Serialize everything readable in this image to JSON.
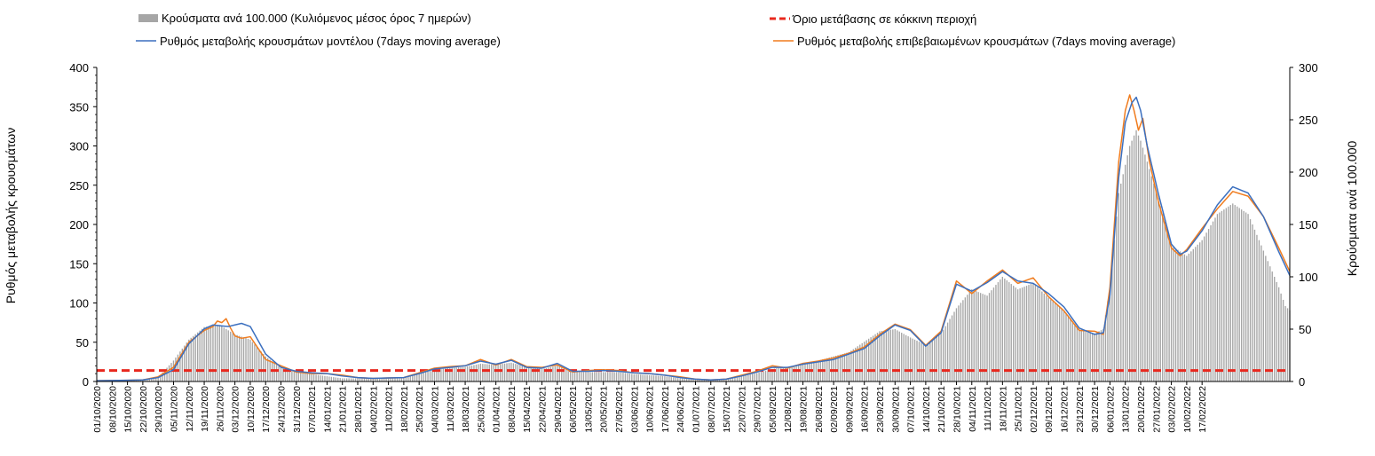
{
  "chart_data": {
    "type": "bar+line",
    "title": "",
    "ylabel_left": "Ρυθμός μεταβολής κρουσμάτων",
    "ylabel_right": "Κρούσματα ανά 100.000",
    "ylim_left": [
      0,
      400
    ],
    "ylim_right": [
      0,
      300
    ],
    "yticks_left": [
      "0",
      "50",
      "100",
      "150",
      "200",
      "250",
      "300",
      "350",
      "400"
    ],
    "yticks_right": [
      "0",
      "50",
      "100",
      "150",
      "200",
      "250",
      "300"
    ],
    "x_start": "01/10/2020",
    "x_end": "22/02/2022",
    "x_ticks": [
      "01/10/2020",
      "08/10/2020",
      "15/10/2020",
      "22/10/2020",
      "29/10/2020",
      "05/11/2020",
      "12/11/2020",
      "19/11/2020",
      "26/11/2020",
      "03/12/2020",
      "10/12/2020",
      "17/12/2020",
      "24/12/2020",
      "31/12/2020",
      "07/01/2021",
      "14/01/2021",
      "21/01/2021",
      "28/01/2021",
      "04/02/2021",
      "11/02/2021",
      "18/02/2021",
      "25/02/2021",
      "04/03/2021",
      "11/03/2021",
      "18/03/2021",
      "25/03/2021",
      "01/04/2021",
      "08/04/2021",
      "15/04/2021",
      "22/04/2021",
      "29/04/2021",
      "06/05/2021",
      "13/05/2021",
      "20/05/2021",
      "27/05/2021",
      "03/06/2021",
      "10/06/2021",
      "17/06/2021",
      "24/06/2021",
      "01/07/2021",
      "08/07/2021",
      "15/07/2021",
      "22/07/2021",
      "29/07/2021",
      "05/08/2021",
      "12/08/2021",
      "19/08/2021",
      "26/08/2021",
      "02/09/2021",
      "09/09/2021",
      "16/09/2021",
      "23/09/2021",
      "30/09/2021",
      "07/10/2021",
      "14/10/2021",
      "21/10/2021",
      "28/10/2021",
      "04/11/2021",
      "11/11/2021",
      "18/11/2021",
      "25/11/2021",
      "02/12/2021",
      "09/12/2021",
      "16/12/2021",
      "23/12/2021",
      "30/12/2021",
      "06/01/2022",
      "13/01/2022",
      "20/01/2022",
      "27/01/2022",
      "03/02/2022",
      "10/02/2022",
      "17/02/2022"
    ],
    "legend": [
      {
        "label": "Κρούσματα ανά 100.000 (Κυλιόμενος μέσος όρος 7 ημερών)",
        "kind": "bar",
        "color": "#a6a6a6"
      },
      {
        "label": "Όριο μετάβασης σε κόκκινη περιοχή",
        "kind": "dash",
        "color": "#e8281e"
      },
      {
        "label": "Ρυθμός μεταβολής κρουσμάτων μοντέλου (7days moving average)",
        "kind": "line",
        "color": "#3b6fbf"
      },
      {
        "label": "Ρυθμός μεταβολής επιβεβαιωμένων κρουσμάτων (7days moving average)",
        "kind": "line",
        "color": "#f07c1e"
      }
    ],
    "series": [
      {
        "name": "Κρούσματα ανά 100.000 (Κυλιόμενος μέσος όρος 7 ημερών)",
        "axis": "right",
        "type": "bar",
        "color": "#a6a6a6",
        "points": [
          [
            0,
            0.5
          ],
          [
            14,
            0.8
          ],
          [
            21,
            1.2
          ],
          [
            28,
            4
          ],
          [
            35,
            20
          ],
          [
            42,
            40
          ],
          [
            49,
            52
          ],
          [
            56,
            54
          ],
          [
            63,
            45
          ],
          [
            70,
            40
          ],
          [
            77,
            24
          ],
          [
            84,
            13
          ],
          [
            91,
            9
          ],
          [
            98,
            7
          ],
          [
            105,
            5
          ],
          [
            112,
            3
          ],
          [
            119,
            3
          ],
          [
            126,
            3
          ],
          [
            133,
            3.5
          ],
          [
            140,
            4
          ],
          [
            147,
            9
          ],
          [
            154,
            11
          ],
          [
            161,
            13
          ],
          [
            168,
            14
          ],
          [
            175,
            17
          ],
          [
            182,
            16
          ],
          [
            189,
            18
          ],
          [
            196,
            14
          ],
          [
            203,
            12
          ],
          [
            210,
            15
          ],
          [
            217,
            9
          ],
          [
            224,
            9
          ],
          [
            231,
            9
          ],
          [
            238,
            9
          ],
          [
            245,
            7
          ],
          [
            252,
            6
          ],
          [
            259,
            5
          ],
          [
            266,
            3
          ],
          [
            273,
            2
          ],
          [
            280,
            1.5
          ],
          [
            287,
            2
          ],
          [
            294,
            5
          ],
          [
            301,
            8
          ],
          [
            308,
            12
          ],
          [
            315,
            14
          ],
          [
            322,
            17
          ],
          [
            329,
            20
          ],
          [
            336,
            24
          ],
          [
            343,
            28
          ],
          [
            350,
            38
          ],
          [
            357,
            48
          ],
          [
            364,
            50
          ],
          [
            371,
            42
          ],
          [
            378,
            35
          ],
          [
            385,
            46
          ],
          [
            392,
            70
          ],
          [
            399,
            88
          ],
          [
            406,
            82
          ],
          [
            413,
            100
          ],
          [
            420,
            88
          ],
          [
            427,
            94
          ],
          [
            434,
            80
          ],
          [
            441,
            68
          ],
          [
            448,
            50
          ],
          [
            455,
            46
          ],
          [
            459,
            50
          ],
          [
            462,
            90
          ],
          [
            466,
            180
          ],
          [
            471,
            225
          ],
          [
            474,
            240
          ],
          [
            476,
            230
          ],
          [
            479,
            210
          ],
          [
            484,
            175
          ],
          [
            490,
            130
          ],
          [
            497,
            120
          ],
          [
            504,
            135
          ],
          [
            511,
            160
          ],
          [
            518,
            170
          ],
          [
            525,
            160
          ],
          [
            532,
            125
          ],
          [
            539,
            90
          ],
          [
            542,
            72
          ],
          [
            544,
            68
          ]
        ]
      },
      {
        "name": "Όριο μετάβασης σε κόκκινη περιοχή",
        "axis": "left",
        "type": "dash",
        "color": "#e8281e",
        "points": [
          [
            0,
            14
          ],
          [
            544,
            14
          ]
        ]
      },
      {
        "name": "Ρυθμός μεταβολής κρουσμάτων μοντέλου (7days moving average)",
        "axis": "left",
        "type": "line",
        "color": "#3b6fbf",
        "points": [
          [
            0,
            1
          ],
          [
            14,
            1.5
          ],
          [
            21,
            2
          ],
          [
            28,
            5
          ],
          [
            35,
            15
          ],
          [
            42,
            48
          ],
          [
            49,
            67
          ],
          [
            53,
            72
          ],
          [
            56,
            71
          ],
          [
            60,
            70
          ],
          [
            63,
            72
          ],
          [
            66,
            74
          ],
          [
            70,
            70
          ],
          [
            77,
            35
          ],
          [
            84,
            18
          ],
          [
            91,
            13
          ],
          [
            98,
            11
          ],
          [
            105,
            10
          ],
          [
            112,
            7
          ],
          [
            119,
            5
          ],
          [
            126,
            4
          ],
          [
            133,
            4.5
          ],
          [
            140,
            5
          ],
          [
            147,
            10
          ],
          [
            154,
            16
          ],
          [
            161,
            18
          ],
          [
            168,
            20
          ],
          [
            175,
            26
          ],
          [
            182,
            22
          ],
          [
            189,
            27
          ],
          [
            196,
            18
          ],
          [
            203,
            17
          ],
          [
            210,
            23
          ],
          [
            217,
            13
          ],
          [
            224,
            13
          ],
          [
            231,
            14
          ],
          [
            238,
            13
          ],
          [
            245,
            11
          ],
          [
            252,
            10
          ],
          [
            259,
            8
          ],
          [
            266,
            5
          ],
          [
            273,
            3
          ],
          [
            280,
            2
          ],
          [
            287,
            3
          ],
          [
            294,
            7
          ],
          [
            301,
            12
          ],
          [
            308,
            18
          ],
          [
            315,
            18
          ],
          [
            322,
            22
          ],
          [
            329,
            25
          ],
          [
            336,
            28
          ],
          [
            343,
            35
          ],
          [
            350,
            42
          ],
          [
            357,
            58
          ],
          [
            364,
            72
          ],
          [
            371,
            65
          ],
          [
            378,
            45
          ],
          [
            385,
            62
          ],
          [
            392,
            124
          ],
          [
            399,
            115
          ],
          [
            406,
            126
          ],
          [
            413,
            140
          ],
          [
            420,
            128
          ],
          [
            427,
            125
          ],
          [
            434,
            112
          ],
          [
            441,
            95
          ],
          [
            448,
            68
          ],
          [
            455,
            60
          ],
          [
            459,
            62
          ],
          [
            462,
            110
          ],
          [
            466,
            260
          ],
          [
            469,
            330
          ],
          [
            472,
            355
          ],
          [
            474,
            362
          ],
          [
            476,
            345
          ],
          [
            479,
            300
          ],
          [
            484,
            240
          ],
          [
            490,
            175
          ],
          [
            494,
            162
          ],
          [
            497,
            166
          ],
          [
            504,
            192
          ],
          [
            511,
            225
          ],
          [
            518,
            248
          ],
          [
            525,
            240
          ],
          [
            532,
            210
          ],
          [
            539,
            165
          ],
          [
            544,
            135
          ]
        ]
      },
      {
        "name": "Ρυθμός μεταβολής επιβεβαιωμένων κρουσμάτων (7days moving average)",
        "axis": "left",
        "type": "line",
        "color": "#f07c1e",
        "points": [
          [
            0,
            1
          ],
          [
            14,
            1.5
          ],
          [
            21,
            2
          ],
          [
            28,
            6
          ],
          [
            35,
            18
          ],
          [
            42,
            50
          ],
          [
            49,
            65
          ],
          [
            53,
            70
          ],
          [
            55,
            77
          ],
          [
            57,
            75
          ],
          [
            59,
            80
          ],
          [
            61,
            68
          ],
          [
            63,
            58
          ],
          [
            66,
            55
          ],
          [
            70,
            57
          ],
          [
            77,
            28
          ],
          [
            84,
            20
          ],
          [
            91,
            12
          ],
          [
            98,
            10
          ],
          [
            105,
            10
          ],
          [
            112,
            8
          ],
          [
            119,
            5
          ],
          [
            126,
            4
          ],
          [
            133,
            4.5
          ],
          [
            140,
            5
          ],
          [
            147,
            11
          ],
          [
            154,
            17
          ],
          [
            161,
            19
          ],
          [
            168,
            20
          ],
          [
            175,
            28
          ],
          [
            182,
            21
          ],
          [
            189,
            28
          ],
          [
            196,
            19
          ],
          [
            203,
            18
          ],
          [
            210,
            21
          ],
          [
            217,
            12
          ],
          [
            224,
            14
          ],
          [
            231,
            15
          ],
          [
            238,
            14
          ],
          [
            245,
            11
          ],
          [
            252,
            10
          ],
          [
            259,
            8
          ],
          [
            266,
            6
          ],
          [
            273,
            3
          ],
          [
            280,
            2
          ],
          [
            287,
            3
          ],
          [
            294,
            8
          ],
          [
            301,
            13
          ],
          [
            308,
            20
          ],
          [
            315,
            17
          ],
          [
            322,
            23
          ],
          [
            329,
            26
          ],
          [
            336,
            30
          ],
          [
            343,
            36
          ],
          [
            350,
            44
          ],
          [
            357,
            60
          ],
          [
            364,
            73
          ],
          [
            371,
            66
          ],
          [
            378,
            46
          ],
          [
            385,
            64
          ],
          [
            392,
            128
          ],
          [
            399,
            112
          ],
          [
            406,
            128
          ],
          [
            413,
            142
          ],
          [
            420,
            125
          ],
          [
            427,
            132
          ],
          [
            434,
            108
          ],
          [
            441,
            90
          ],
          [
            448,
            65
          ],
          [
            455,
            64
          ],
          [
            459,
            60
          ],
          [
            462,
            120
          ],
          [
            466,
            280
          ],
          [
            469,
            345
          ],
          [
            471,
            365
          ],
          [
            473,
            345
          ],
          [
            475,
            320
          ],
          [
            477,
            335
          ],
          [
            480,
            280
          ],
          [
            484,
            230
          ],
          [
            490,
            170
          ],
          [
            494,
            160
          ],
          [
            497,
            168
          ],
          [
            504,
            195
          ],
          [
            511,
            220
          ],
          [
            518,
            242
          ],
          [
            525,
            236
          ],
          [
            532,
            210
          ],
          [
            539,
            170
          ],
          [
            544,
            140
          ]
        ]
      }
    ]
  }
}
